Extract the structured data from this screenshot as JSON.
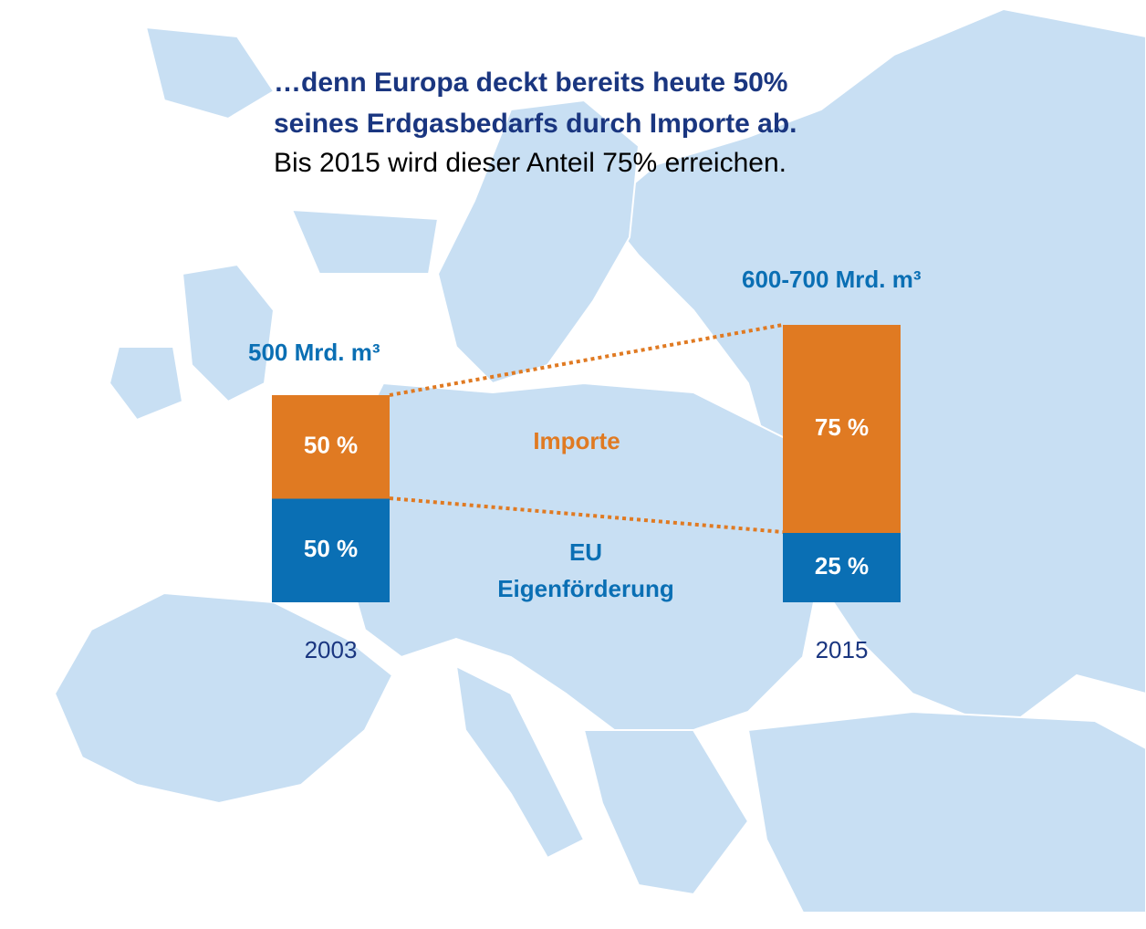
{
  "chart_data": {
    "type": "stacked_bar",
    "title": [
      "…denn Europa deckt bereits heute 50%",
      "seines Erdgasbedarfs durch Importe ab."
    ],
    "subtitle": "Bis 2015 wird dieser Anteil 75% erreichen.",
    "categories": [
      "2003",
      "2015"
    ],
    "series": [
      {
        "name": "EU Eigenförderung",
        "color": "#0a6fb4",
        "values": [
          50,
          25
        ],
        "value_labels": [
          "50 %",
          "25 %"
        ]
      },
      {
        "name": "Importe",
        "color": "#e07a22",
        "values": [
          50,
          75
        ],
        "value_labels": [
          "50 %",
          "75 %"
        ]
      }
    ],
    "annotations": [
      "500 Mrd. m³",
      "600-700 Mrd. m³"
    ]
  }
}
